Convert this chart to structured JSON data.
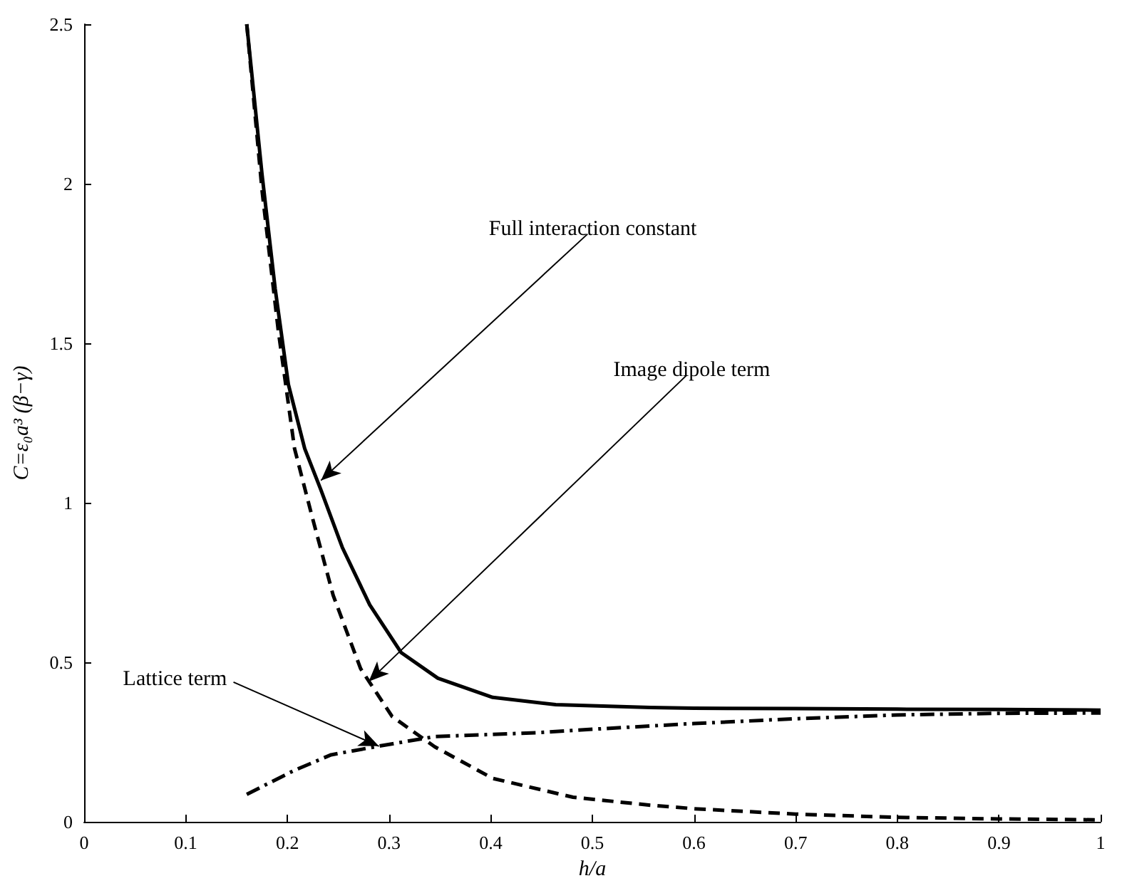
{
  "chart_data": {
    "type": "line",
    "xlabel": "h/a",
    "ylabel": "C=ε₀a³ (β−γ)",
    "xlim": [
      0,
      1
    ],
    "xticks": [
      0,
      0.1,
      0.2,
      0.3,
      0.4,
      0.5,
      0.6,
      0.7,
      0.8,
      0.9,
      1
    ],
    "ylim": [
      0,
      2.5
    ],
    "yticks": [
      0,
      0.5,
      1,
      1.5,
      2,
      2.5
    ],
    "grid": false,
    "marker": "none",
    "series": [
      {
        "color": "#000000",
        "line_style": "solid",
        "x": [
          0.16,
          0.175,
          0.188,
          0.201,
          0.217,
          0.233,
          0.254,
          0.281,
          0.312,
          0.348,
          0.402,
          0.464,
          0.557,
          0.6,
          0.7,
          0.8,
          0.9,
          1.0
        ],
        "values": [
          2.5,
          2.03,
          1.67,
          1.37,
          1.17,
          1.04,
          0.86,
          0.68,
          0.53,
          0.45,
          0.39,
          0.367,
          0.358,
          0.356,
          0.355,
          0.353,
          0.352,
          0.35
        ]
      },
      {
        "color": "#000000",
        "line_style": "dashed",
        "x": [
          0.16,
          0.175,
          0.191,
          0.207,
          0.224,
          0.245,
          0.272,
          0.303,
          0.345,
          0.402,
          0.481,
          0.557,
          0.6,
          0.7,
          0.8,
          0.9,
          1.0
        ],
        "values": [
          2.5,
          1.98,
          1.54,
          1.17,
          0.96,
          0.71,
          0.48,
          0.33,
          0.235,
          0.136,
          0.077,
          0.052,
          0.041,
          0.024,
          0.014,
          0.009,
          0.006
        ]
      },
      {
        "color": "#000000",
        "line_style": "dashdot",
        "x": [
          0.16,
          0.206,
          0.243,
          0.295,
          0.345,
          0.45,
          0.5,
          0.6,
          0.7,
          0.8,
          0.9,
          1.0
        ],
        "values": [
          0.086,
          0.16,
          0.21,
          0.24,
          0.267,
          0.28,
          0.29,
          0.308,
          0.323,
          0.335,
          0.34,
          0.341
        ]
      }
    ],
    "annotations": [
      {
        "text": "Full interaction constant",
        "x": 0.233,
        "y": 1.07
      },
      {
        "text": "Image dipole term",
        "x": 0.28,
        "y": 0.44
      },
      {
        "text": "Lattice term",
        "x": 0.29,
        "y": 0.237
      }
    ]
  }
}
